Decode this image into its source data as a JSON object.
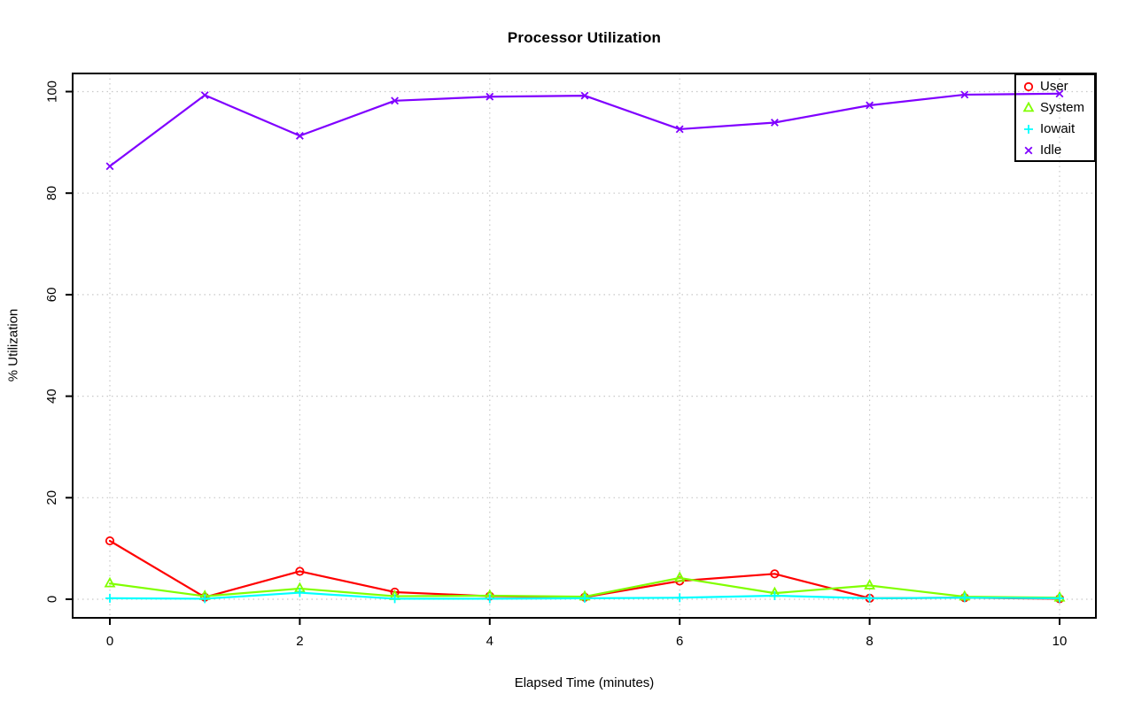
{
  "title": "Processor Utilization",
  "x_axis": {
    "label": "Elapsed Time (minutes)",
    "ticks": [
      0,
      2,
      4,
      6,
      8,
      10
    ]
  },
  "y_axis": {
    "label": "% Utilization",
    "ticks": [
      0,
      20,
      40,
      60,
      80,
      100
    ]
  },
  "colors": {
    "grid": "#c8c8c8",
    "axis": "#000000"
  },
  "chart_data": {
    "type": "line",
    "title": "Processor Utilization",
    "xlabel": "Elapsed Time (minutes)",
    "ylabel": "% Utilization",
    "xlim": [
      0,
      10
    ],
    "ylim": [
      0,
      100
    ],
    "grid": true,
    "legend_position": "topright",
    "x": [
      0,
      1,
      2,
      3,
      4,
      5,
      6,
      7,
      8,
      9,
      10
    ],
    "series": [
      {
        "name": "User",
        "color": "#FF0000",
        "marker": "circle",
        "values": [
          11.5,
          0.4,
          5.5,
          1.4,
          0.6,
          0.4,
          3.6,
          5.0,
          0.2,
          0.3,
          0.1
        ]
      },
      {
        "name": "System",
        "color": "#80FF00",
        "marker": "triangle",
        "values": [
          3.1,
          0.6,
          2.1,
          0.6,
          0.7,
          0.5,
          4.2,
          1.2,
          2.7,
          0.5,
          0.3
        ]
      },
      {
        "name": "Iowait",
        "color": "#00FFFF",
        "marker": "plus",
        "values": [
          0.2,
          0.1,
          1.3,
          0.1,
          0.1,
          0.2,
          0.3,
          0.7,
          0.2,
          0.3,
          0.2
        ]
      },
      {
        "name": "Idle",
        "color": "#8000FF",
        "marker": "x",
        "values": [
          85.3,
          99.3,
          91.3,
          98.2,
          99.0,
          99.2,
          92.6,
          93.9,
          97.3,
          99.4,
          99.6
        ]
      }
    ]
  }
}
